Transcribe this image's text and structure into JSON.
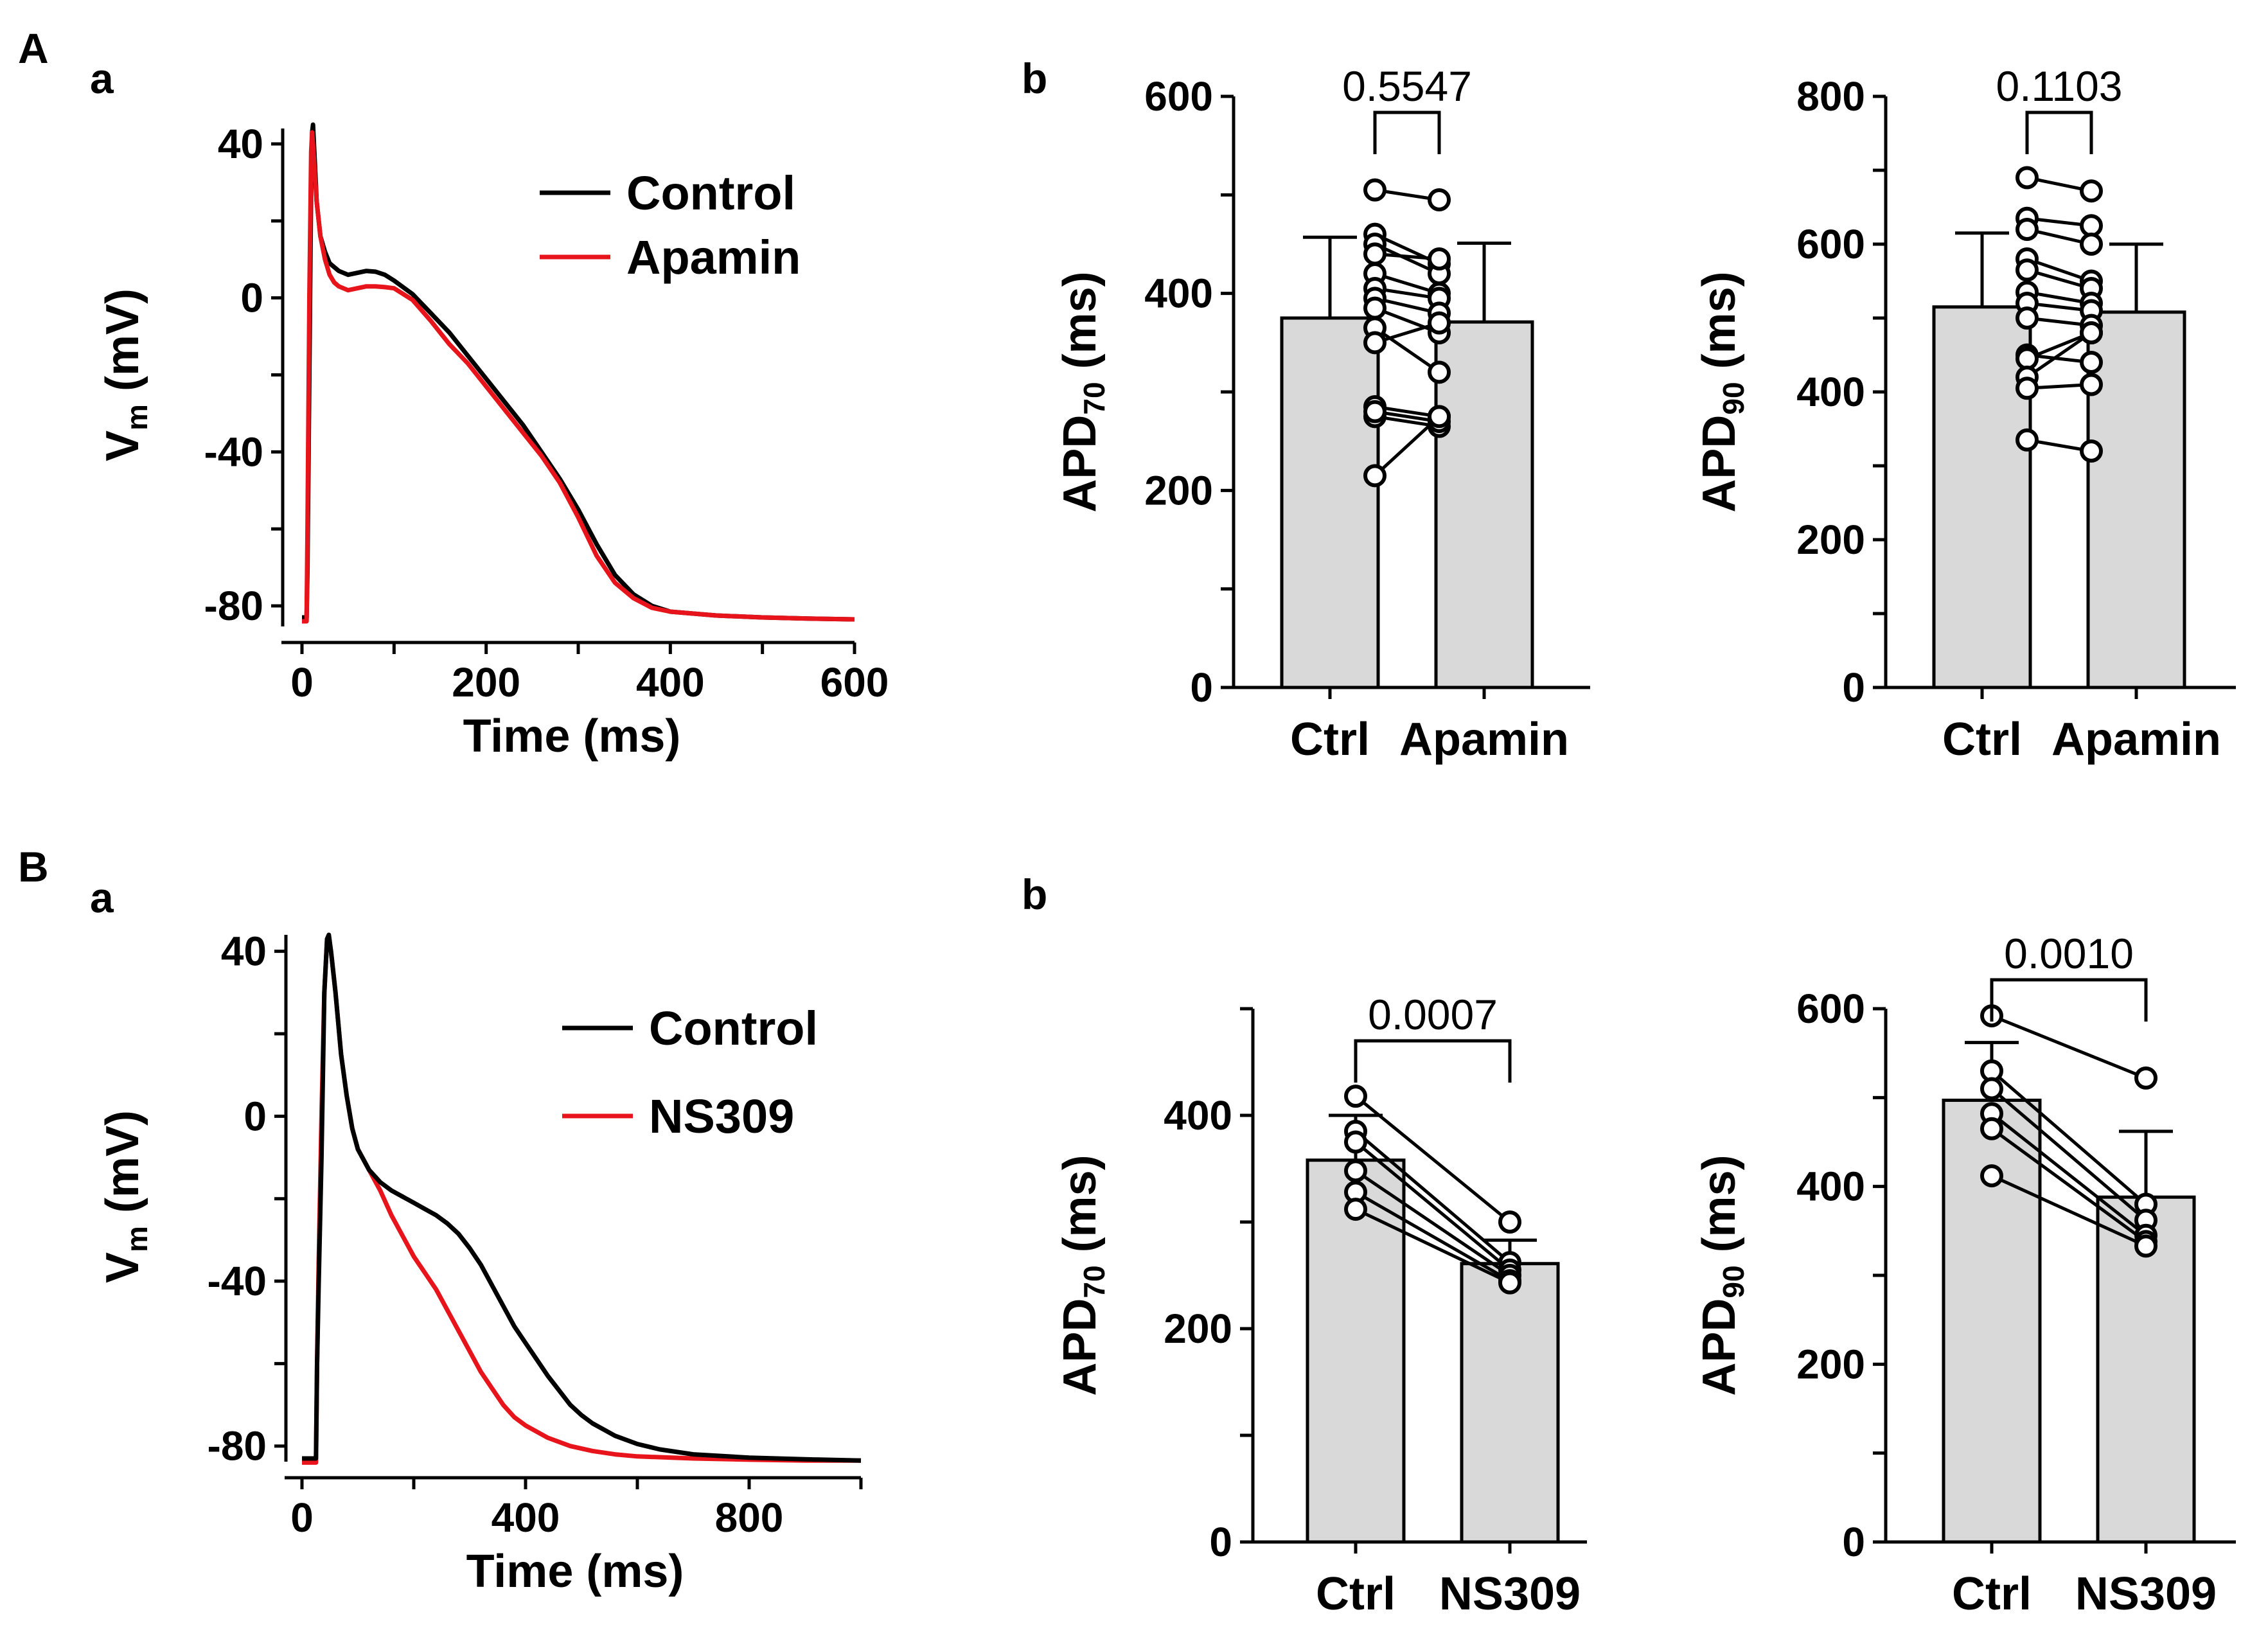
{
  "panels": {
    "A": "A",
    "B": "B",
    "Aa": "a",
    "Ab": "b",
    "Ba": "a",
    "Bb": "b"
  },
  "colors": {
    "control": "#000000",
    "drug": "#e8141b",
    "bar": "#d9d9d9"
  },
  "chart_data": [
    {
      "id": "Aa",
      "type": "line",
      "xlabel": "Time (ms)",
      "ylabel_main": "V",
      "ylabel_sub": "m",
      "ylabel_rest": " (mV)",
      "xlim": [
        0,
        600
      ],
      "ylim": [
        -84,
        44
      ],
      "xticks": [
        0,
        200,
        400,
        600
      ],
      "yticks": [
        40,
        0,
        -40,
        -80
      ],
      "series": [
        {
          "name": "Control",
          "color": "#000000",
          "points": [
            [
              0,
              -83
            ],
            [
              5,
              -83
            ],
            [
              6,
              -70
            ],
            [
              8,
              -20
            ],
            [
              10,
              30
            ],
            [
              11,
              43
            ],
            [
              12,
              45
            ],
            [
              14,
              35
            ],
            [
              16,
              25
            ],
            [
              20,
              16
            ],
            [
              25,
              12
            ],
            [
              30,
              9
            ],
            [
              40,
              7
            ],
            [
              50,
              6
            ],
            [
              60,
              6.5
            ],
            [
              70,
              7
            ],
            [
              80,
              6.8
            ],
            [
              90,
              6
            ],
            [
              100,
              4.5
            ],
            [
              120,
              1
            ],
            [
              140,
              -4
            ],
            [
              160,
              -9
            ],
            [
              180,
              -15
            ],
            [
              200,
              -21
            ],
            [
              220,
              -27
            ],
            [
              240,
              -33
            ],
            [
              260,
              -40
            ],
            [
              280,
              -47
            ],
            [
              300,
              -55
            ],
            [
              320,
              -64
            ],
            [
              340,
              -72
            ],
            [
              360,
              -77
            ],
            [
              380,
              -80
            ],
            [
              400,
              -81.5
            ],
            [
              450,
              -82.5
            ],
            [
              500,
              -83
            ],
            [
              550,
              -83.3
            ],
            [
              600,
              -83.5
            ]
          ]
        },
        {
          "name": "Apamin",
          "color": "#e8141b",
          "points": [
            [
              0,
              -84
            ],
            [
              5,
              -84
            ],
            [
              6,
              -60
            ],
            [
              8,
              0
            ],
            [
              10,
              38
            ],
            [
              11,
              43
            ],
            [
              12,
              40
            ],
            [
              14,
              32
            ],
            [
              16,
              25
            ],
            [
              20,
              16
            ],
            [
              25,
              10
            ],
            [
              30,
              6
            ],
            [
              35,
              4
            ],
            [
              40,
              3
            ],
            [
              50,
              2
            ],
            [
              60,
              2.5
            ],
            [
              70,
              3
            ],
            [
              80,
              3
            ],
            [
              90,
              2.8
            ],
            [
              100,
              2.5
            ],
            [
              120,
              -0.5
            ],
            [
              140,
              -6
            ],
            [
              160,
              -12
            ],
            [
              180,
              -17
            ],
            [
              200,
              -23
            ],
            [
              220,
              -29
            ],
            [
              240,
              -35
            ],
            [
              260,
              -41
            ],
            [
              280,
              -48
            ],
            [
              300,
              -57
            ],
            [
              320,
              -67
            ],
            [
              340,
              -74
            ],
            [
              360,
              -78
            ],
            [
              380,
              -80.5
            ],
            [
              400,
              -81.5
            ],
            [
              450,
              -82.5
            ],
            [
              500,
              -83
            ],
            [
              550,
              -83.3
            ],
            [
              600,
              -83.5
            ]
          ]
        }
      ]
    },
    {
      "id": "Ab70",
      "type": "bar",
      "categories": [
        "Ctrl",
        "Apamin"
      ],
      "values": [
        375,
        371
      ],
      "errors": [
        82,
        80
      ],
      "ylim": [
        0,
        600
      ],
      "yticks": [
        0,
        200,
        400,
        600
      ],
      "ylabel_main": "APD",
      "ylabel_sub": "70",
      "ylabel_rest": " (ms)",
      "pvalue": "0.5547",
      "pairs": [
        [
          505,
          495
        ],
        [
          460,
          430
        ],
        [
          450,
          420
        ],
        [
          440,
          435
        ],
        [
          420,
          400
        ],
        [
          405,
          395
        ],
        [
          395,
          380
        ],
        [
          385,
          360
        ],
        [
          365,
          320
        ],
        [
          350,
          370
        ],
        [
          285,
          275
        ],
        [
          275,
          265
        ],
        [
          280,
          270
        ],
        [
          215,
          275
        ]
      ]
    },
    {
      "id": "Ab90",
      "type": "bar",
      "categories": [
        "Ctrl",
        "Apamin"
      ],
      "values": [
        515,
        508
      ],
      "errors": [
        100,
        92
      ],
      "ylim": [
        0,
        800
      ],
      "yticks": [
        0,
        200,
        400,
        600,
        800
      ],
      "ylabel_main": "APD",
      "ylabel_sub": "90",
      "ylabel_rest": " (ms)",
      "pvalue": "0.1103",
      "pairs": [
        [
          690,
          672
        ],
        [
          635,
          625
        ],
        [
          620,
          600
        ],
        [
          580,
          550
        ],
        [
          565,
          540
        ],
        [
          535,
          520
        ],
        [
          520,
          510
        ],
        [
          500,
          490
        ],
        [
          450,
          440
        ],
        [
          445,
          480
        ],
        [
          420,
          480
        ],
        [
          405,
          410
        ],
        [
          335,
          320
        ]
      ]
    },
    {
      "id": "Ba",
      "type": "line",
      "xlabel": "Time (ms)",
      "ylabel_main": "V",
      "ylabel_sub": "m",
      "ylabel_rest": " (mV)",
      "xlim": [
        0,
        1000
      ],
      "ylim": [
        -83,
        44
      ],
      "xticks": [
        0,
        400,
        800
      ],
      "xminorticks": [
        200,
        600,
        1000
      ],
      "yticks": [
        40,
        0,
        -40,
        -80
      ],
      "series": [
        {
          "name": "Control",
          "color": "#000000",
          "points": [
            [
              0,
              -83
            ],
            [
              25,
              -83
            ],
            [
              27,
              -60
            ],
            [
              30,
              -40
            ],
            [
              35,
              -10
            ],
            [
              40,
              30
            ],
            [
              45,
              43
            ],
            [
              48,
              44
            ],
            [
              52,
              40
            ],
            [
              60,
              30
            ],
            [
              70,
              15
            ],
            [
              80,
              5
            ],
            [
              90,
              -3
            ],
            [
              100,
              -8
            ],
            [
              120,
              -13
            ],
            [
              140,
              -16
            ],
            [
              160,
              -18
            ],
            [
              180,
              -19.5
            ],
            [
              200,
              -21
            ],
            [
              220,
              -22.5
            ],
            [
              240,
              -24
            ],
            [
              260,
              -26
            ],
            [
              280,
              -28.5
            ],
            [
              300,
              -32
            ],
            [
              320,
              -36
            ],
            [
              340,
              -41
            ],
            [
              360,
              -46
            ],
            [
              380,
              -51
            ],
            [
              400,
              -55
            ],
            [
              420,
              -59
            ],
            [
              440,
              -63
            ],
            [
              460,
              -66.5
            ],
            [
              480,
              -70
            ],
            [
              500,
              -72.5
            ],
            [
              520,
              -74.5
            ],
            [
              540,
              -76
            ],
            [
              560,
              -77.5
            ],
            [
              600,
              -79.5
            ],
            [
              640,
              -80.8
            ],
            [
              700,
              -82
            ],
            [
              800,
              -82.8
            ],
            [
              900,
              -83.2
            ],
            [
              1000,
              -83.5
            ]
          ]
        },
        {
          "name": "NS309",
          "color": "#e8141b",
          "points": [
            [
              0,
              -84
            ],
            [
              25,
              -84
            ],
            [
              27,
              -60
            ],
            [
              30,
              -35
            ],
            [
              35,
              0
            ],
            [
              40,
              30
            ],
            [
              45,
              43
            ],
            [
              48,
              43
            ],
            [
              52,
              40
            ],
            [
              60,
              30
            ],
            [
              70,
              15
            ],
            [
              80,
              5
            ],
            [
              90,
              -3
            ],
            [
              100,
              -8
            ],
            [
              120,
              -13
            ],
            [
              140,
              -18
            ],
            [
              160,
              -24
            ],
            [
              180,
              -29
            ],
            [
              200,
              -34
            ],
            [
              220,
              -38
            ],
            [
              240,
              -42
            ],
            [
              260,
              -47
            ],
            [
              280,
              -52
            ],
            [
              300,
              -57
            ],
            [
              320,
              -62
            ],
            [
              340,
              -66
            ],
            [
              360,
              -70
            ],
            [
              380,
              -73
            ],
            [
              400,
              -75
            ],
            [
              440,
              -78
            ],
            [
              480,
              -80
            ],
            [
              520,
              -81.2
            ],
            [
              560,
              -82
            ],
            [
              600,
              -82.5
            ],
            [
              700,
              -83
            ],
            [
              800,
              -83.3
            ],
            [
              900,
              -83.5
            ],
            [
              1000,
              -83.5
            ]
          ]
        }
      ]
    },
    {
      "id": "Bb70",
      "type": "bar",
      "categories": [
        "Ctrl",
        "NS309"
      ],
      "values": [
        358,
        261
      ],
      "errors": [
        42,
        22
      ],
      "ylim": [
        0,
        500
      ],
      "yticks": [
        0,
        200,
        400
      ],
      "ylabel_main": "APD",
      "ylabel_sub": "70",
      "ylabel_rest": " (ms)",
      "pvalue": "0.0007",
      "pairs": [
        [
          418,
          300
        ],
        [
          385,
          262
        ],
        [
          375,
          255
        ],
        [
          348,
          250
        ],
        [
          328,
          245
        ],
        [
          312,
          243
        ]
      ]
    },
    {
      "id": "Bb90",
      "type": "bar",
      "categories": [
        "Ctrl",
        "NS309"
      ],
      "values": [
        497,
        388
      ],
      "errors": [
        65,
        74
      ],
      "ylim": [
        0,
        600
      ],
      "yticks": [
        0,
        200,
        400,
        600
      ],
      "ylabel_main": "APD",
      "ylabel_sub": "90",
      "ylabel_rest": " (ms)",
      "pvalue": "0.0010",
      "pairs": [
        [
          592,
          522
        ],
        [
          530,
          380
        ],
        [
          510,
          362
        ],
        [
          482,
          345
        ],
        [
          465,
          338
        ],
        [
          412,
          333
        ]
      ]
    }
  ]
}
